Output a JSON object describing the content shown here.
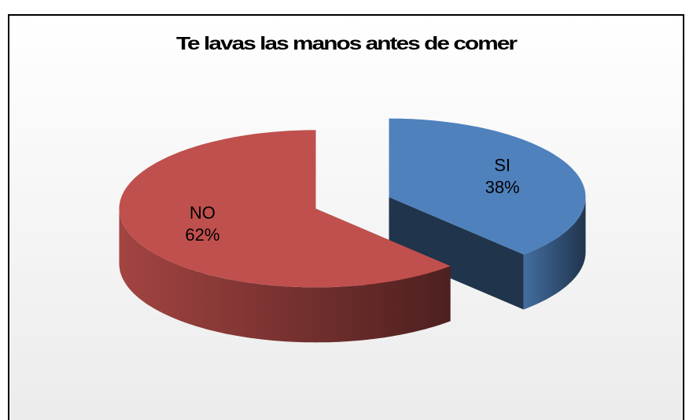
{
  "chart_data": {
    "type": "pie",
    "title": "Te lavas las manos antes de comer",
    "categories": [
      "SI",
      "NO"
    ],
    "values": [
      38,
      62
    ],
    "value_labels": [
      "38%",
      "62%"
    ],
    "colors": [
      "#4f81bd",
      "#c0504d"
    ]
  }
}
